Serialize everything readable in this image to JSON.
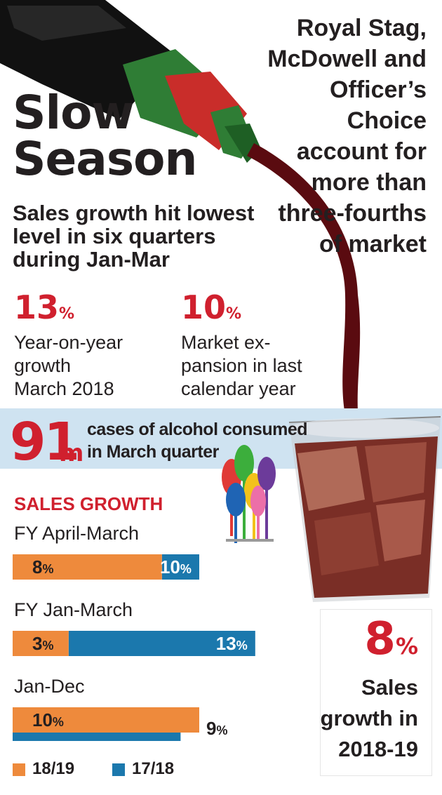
{
  "header": {
    "title_line1": "Slow",
    "title_line2": "Season",
    "subtitle": "Sales growth hit lowest level in six quarters during Jan-Mar",
    "side_note": "Royal Stag, McDowell and Officer’s Choice account for more than three-fourths of market"
  },
  "stats": [
    {
      "value": "13",
      "unit": "%",
      "desc_lines": [
        "Year-on-year",
        "growth",
        "March 2018"
      ]
    },
    {
      "value": "10",
      "unit": "%",
      "desc_lines": [
        "Market ex-",
        "pansion in last",
        "calendar year"
      ]
    }
  ],
  "band": {
    "value": "91",
    "unit": "m",
    "desc_line1": "cases of alcohol consumed",
    "desc_line2": "in March quarter"
  },
  "callout": {
    "value": "8",
    "unit": "%",
    "desc_lines": [
      "Sales",
      "growth in",
      "2018-19"
    ]
  },
  "colors": {
    "red": "#d0202e",
    "orange": "#ee8a3c",
    "blue": "#1b78ad",
    "band": "#cfe3f1",
    "ink": "#231f20"
  },
  "chart_data": {
    "type": "bar",
    "orientation": "horizontal",
    "title": "SALES GROWTH",
    "categories": [
      "FY April-March",
      "FY Jan-March",
      "Jan-Dec"
    ],
    "series": [
      {
        "name": "18/19",
        "color": "#ee8a3c",
        "values": [
          8,
          3,
          10
        ],
        "labels": [
          "8%",
          "3%",
          "10%"
        ]
      },
      {
        "name": "17/18",
        "color": "#1b78ad",
        "values": [
          10,
          13,
          9
        ],
        "labels": [
          "10%",
          "13%",
          "9%"
        ]
      }
    ],
    "xlim": [
      0,
      13
    ],
    "legend": "bottom-left",
    "grid": false
  }
}
